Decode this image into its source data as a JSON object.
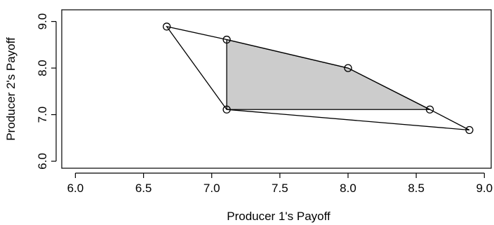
{
  "chart_data": {
    "type": "scatter",
    "title": "",
    "xlabel": "Producer 1's Payoff",
    "ylabel": "Producer 2's Payoff",
    "xlim": [
      5.9,
      9.05
    ],
    "ylim": [
      5.85,
      9.25
    ],
    "xticks": [
      "6.0",
      "6.5",
      "7.0",
      "7.5",
      "8.0",
      "8.5",
      "9.0"
    ],
    "yticks": [
      "6.0",
      "7.0",
      "8.0",
      "9.0"
    ],
    "grid": false,
    "points": [
      {
        "x": 6.67,
        "y": 8.89
      },
      {
        "x": 7.11,
        "y": 8.61
      },
      {
        "x": 8.0,
        "y": 8.0
      },
      {
        "x": 8.6,
        "y": 7.11
      },
      {
        "x": 8.89,
        "y": 6.67
      },
      {
        "x": 7.11,
        "y": 7.11
      }
    ],
    "hull": [
      {
        "x": 6.67,
        "y": 8.89
      },
      {
        "x": 7.11,
        "y": 8.61
      },
      {
        "x": 8.0,
        "y": 8.0
      },
      {
        "x": 8.6,
        "y": 7.11
      },
      {
        "x": 8.89,
        "y": 6.67
      },
      {
        "x": 7.11,
        "y": 7.11
      }
    ],
    "shaded_region": [
      {
        "x": 7.11,
        "y": 8.61
      },
      {
        "x": 8.0,
        "y": 8.0
      },
      {
        "x": 8.6,
        "y": 7.11
      },
      {
        "x": 7.11,
        "y": 7.11
      }
    ],
    "shade_color": "#cccccc",
    "line_color": "#000000"
  }
}
